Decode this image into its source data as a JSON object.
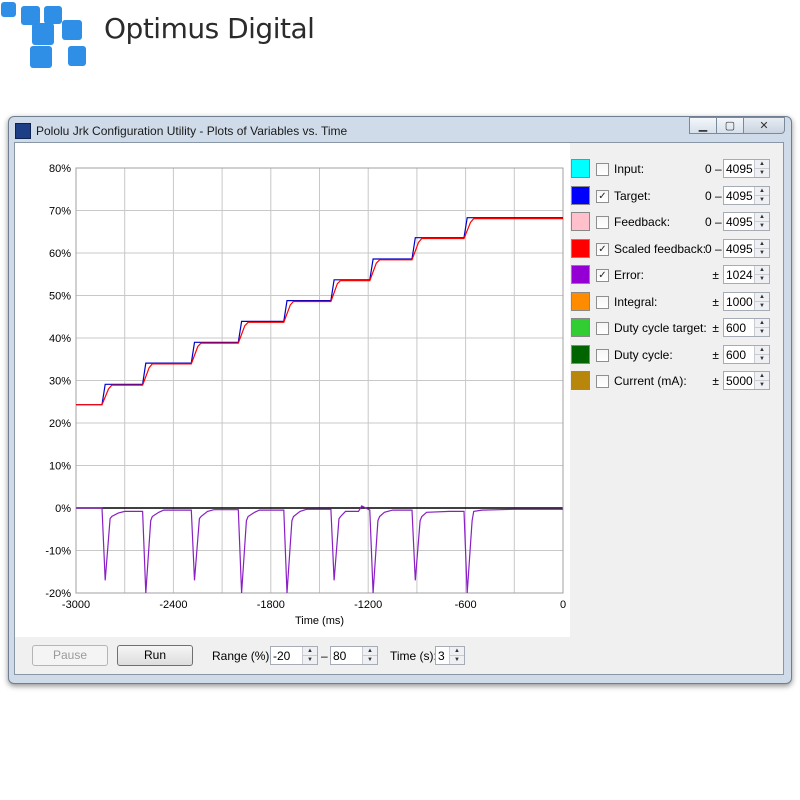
{
  "brand": {
    "name": "Optimus Digital"
  },
  "window": {
    "title": "Pololu Jrk Configuration Utility - Plots of Variables vs. Time",
    "buttons": {
      "minimize_icon": "minimize-icon",
      "maximize_icon": "maximize-icon",
      "close_icon": "close-icon"
    }
  },
  "legend": [
    {
      "label": "Input:",
      "color": "#00ffff",
      "checked": false,
      "prefix": "0 –",
      "value": "4095"
    },
    {
      "label": "Target:",
      "color": "#0000ff",
      "checked": true,
      "prefix": "0 –",
      "value": "4095"
    },
    {
      "label": "Feedback:",
      "color": "#ffc0cb",
      "checked": false,
      "prefix": "0 –",
      "value": "4095"
    },
    {
      "label": "Scaled feedback:",
      "color": "#ff0000",
      "checked": true,
      "prefix": "0 –",
      "value": "4095"
    },
    {
      "label": "Error:",
      "color": "#9400d3",
      "checked": true,
      "prefix": "±",
      "value": "1024"
    },
    {
      "label": "Integral:",
      "color": "#ff8c00",
      "checked": false,
      "prefix": "±",
      "value": "1000"
    },
    {
      "label": "Duty cycle target:",
      "color": "#32cd32",
      "checked": false,
      "prefix": "±",
      "value": "600"
    },
    {
      "label": "Duty cycle:",
      "color": "#006400",
      "checked": false,
      "prefix": "±",
      "value": "600"
    },
    {
      "label": "Current (mA):",
      "color": "#b8860b",
      "checked": false,
      "prefix": "±",
      "value": "5000"
    }
  ],
  "controls": {
    "pause_label": "Pause",
    "run_label": "Run",
    "range_label": "Range (%):",
    "range_min": "-20",
    "range_dash": "–",
    "range_max": "80",
    "time_label": "Time (s):",
    "time_value": "3"
  },
  "chart_data": {
    "type": "line",
    "xlabel": "Time (ms)",
    "ylabel": "",
    "xlim": [
      -3000,
      0
    ],
    "ylim": [
      -20,
      80
    ],
    "xticks": [
      -3000,
      -2400,
      -1800,
      -1200,
      -600,
      0
    ],
    "xticks_minor": [
      -2700,
      -2100,
      -1500,
      -900,
      -300
    ],
    "yticks": [
      -20,
      -10,
      0,
      10,
      20,
      30,
      40,
      50,
      60,
      70,
      80
    ],
    "ytick_labels": [
      "-20%",
      "-10%",
      "0%",
      "10%",
      "20%",
      "30%",
      "40%",
      "50%",
      "60%",
      "70%",
      "80%"
    ],
    "grid": true,
    "series": [
      {
        "name": "Target",
        "color": "#0000cc",
        "x": [
          -3000,
          -2840,
          -2820,
          -2590,
          -2570,
          -2290,
          -2270,
          -2000,
          -1980,
          -1720,
          -1700,
          -1430,
          -1410,
          -1190,
          -1170,
          -930,
          -910,
          -610,
          -590,
          0
        ],
        "y": [
          24.3,
          24.3,
          29.1,
          29.1,
          34.1,
          34.1,
          39,
          39,
          43.9,
          43.9,
          48.8,
          48.8,
          53.7,
          53.7,
          58.6,
          58.6,
          63.6,
          63.6,
          68.3,
          68.3
        ]
      },
      {
        "name": "Scaled feedback",
        "color": "#ff0000",
        "x": [
          -3000,
          -2840,
          -2800,
          -2780,
          -2590,
          -2550,
          -2530,
          -2290,
          -2250,
          -2230,
          -2000,
          -1960,
          -1940,
          -1720,
          -1680,
          -1660,
          -1430,
          -1390,
          -1370,
          -1190,
          -1150,
          -1130,
          -930,
          -890,
          -870,
          -610,
          -570,
          -550,
          0
        ],
        "y": [
          24.3,
          24.3,
          28,
          28.9,
          28.9,
          33,
          33.9,
          33.9,
          38,
          38.8,
          38.8,
          42.9,
          43.7,
          43.7,
          47.8,
          48.6,
          48.6,
          52.8,
          53.5,
          53.5,
          57.6,
          58.4,
          58.4,
          62.5,
          63.4,
          63.4,
          67.2,
          68.1,
          68.1
        ]
      },
      {
        "name": "Error",
        "color": "#8a1fc4",
        "x": [
          -3000,
          -2840,
          -2820,
          -2790,
          -2780,
          -2740,
          -2700,
          -2590,
          -2570,
          -2540,
          -2530,
          -2490,
          -2460,
          -2290,
          -2270,
          -2240,
          -2230,
          -2190,
          -2150,
          -2000,
          -1980,
          -1950,
          -1940,
          -1900,
          -1870,
          -1720,
          -1700,
          -1670,
          -1660,
          -1620,
          -1580,
          -1430,
          -1410,
          -1380,
          -1370,
          -1340,
          -1260,
          -1240,
          -1190,
          -1170,
          -1140,
          -1130,
          -1100,
          -1050,
          -930,
          -910,
          -880,
          -870,
          -840,
          -700,
          -610,
          -590,
          -560,
          -550,
          -500,
          -300,
          0
        ],
        "y": [
          0,
          0,
          -17,
          -2.5,
          -2,
          -1.2,
          -0.8,
          -0.8,
          -20,
          -3,
          -2,
          -1,
          -0.5,
          -0.5,
          -17,
          -2.5,
          -2,
          -0.8,
          -0.4,
          -0.4,
          -20,
          -3,
          -2,
          -1,
          -0.5,
          -0.5,
          -20,
          -3,
          -2,
          -0.8,
          -0.3,
          -0.3,
          -17,
          -2.5,
          -2,
          -0.8,
          -0.8,
          0.5,
          -0.5,
          -20,
          -3,
          -2,
          -1,
          -0.5,
          -0.5,
          -17,
          -3,
          -2,
          -1,
          -0.8,
          -0.8,
          -20,
          -3,
          -0.8,
          -0.5,
          -0.3,
          -0.3
        ]
      }
    ]
  }
}
